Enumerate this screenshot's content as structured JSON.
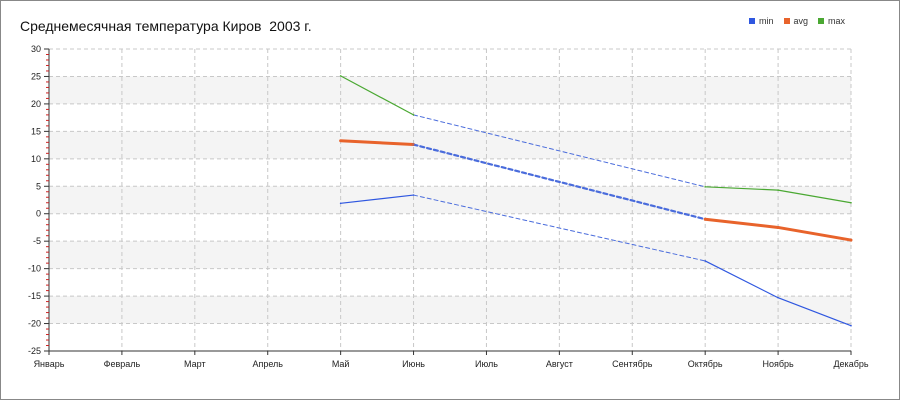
{
  "chart_data": {
    "type": "line",
    "title": "Среднемесячная температура Киров  2003 г.",
    "xlabel": "",
    "ylabel": "",
    "categories": [
      "Январь",
      "Февраль",
      "Март",
      "Апрель",
      "Май",
      "Июнь",
      "Июль",
      "Август",
      "Сентябрь",
      "Октябрь",
      "Ноябрь",
      "Декабрь"
    ],
    "ylim": [
      -25,
      30
    ],
    "yticks": [
      30,
      25,
      20,
      15,
      10,
      5,
      0,
      -5,
      -10,
      -15,
      -20,
      -25
    ],
    "grid": true,
    "legend_position": "top-right",
    "series": [
      {
        "name": "min",
        "color": "#2f57e0",
        "values": [
          null,
          null,
          null,
          null,
          1.9,
          3.4,
          null,
          null,
          null,
          -8.6,
          -15.3,
          -20.4
        ]
      },
      {
        "name": "avg",
        "color": "#e8632b",
        "values": [
          null,
          null,
          null,
          null,
          13.3,
          12.6,
          null,
          null,
          null,
          -1.0,
          -2.5,
          -4.8
        ]
      },
      {
        "name": "max",
        "color": "#4aa832",
        "values": [
          null,
          null,
          null,
          null,
          25.1,
          18.0,
          null,
          null,
          null,
          4.9,
          4.3,
          2.0
        ]
      }
    ],
    "interpolated_color": "#4a6cdc"
  }
}
